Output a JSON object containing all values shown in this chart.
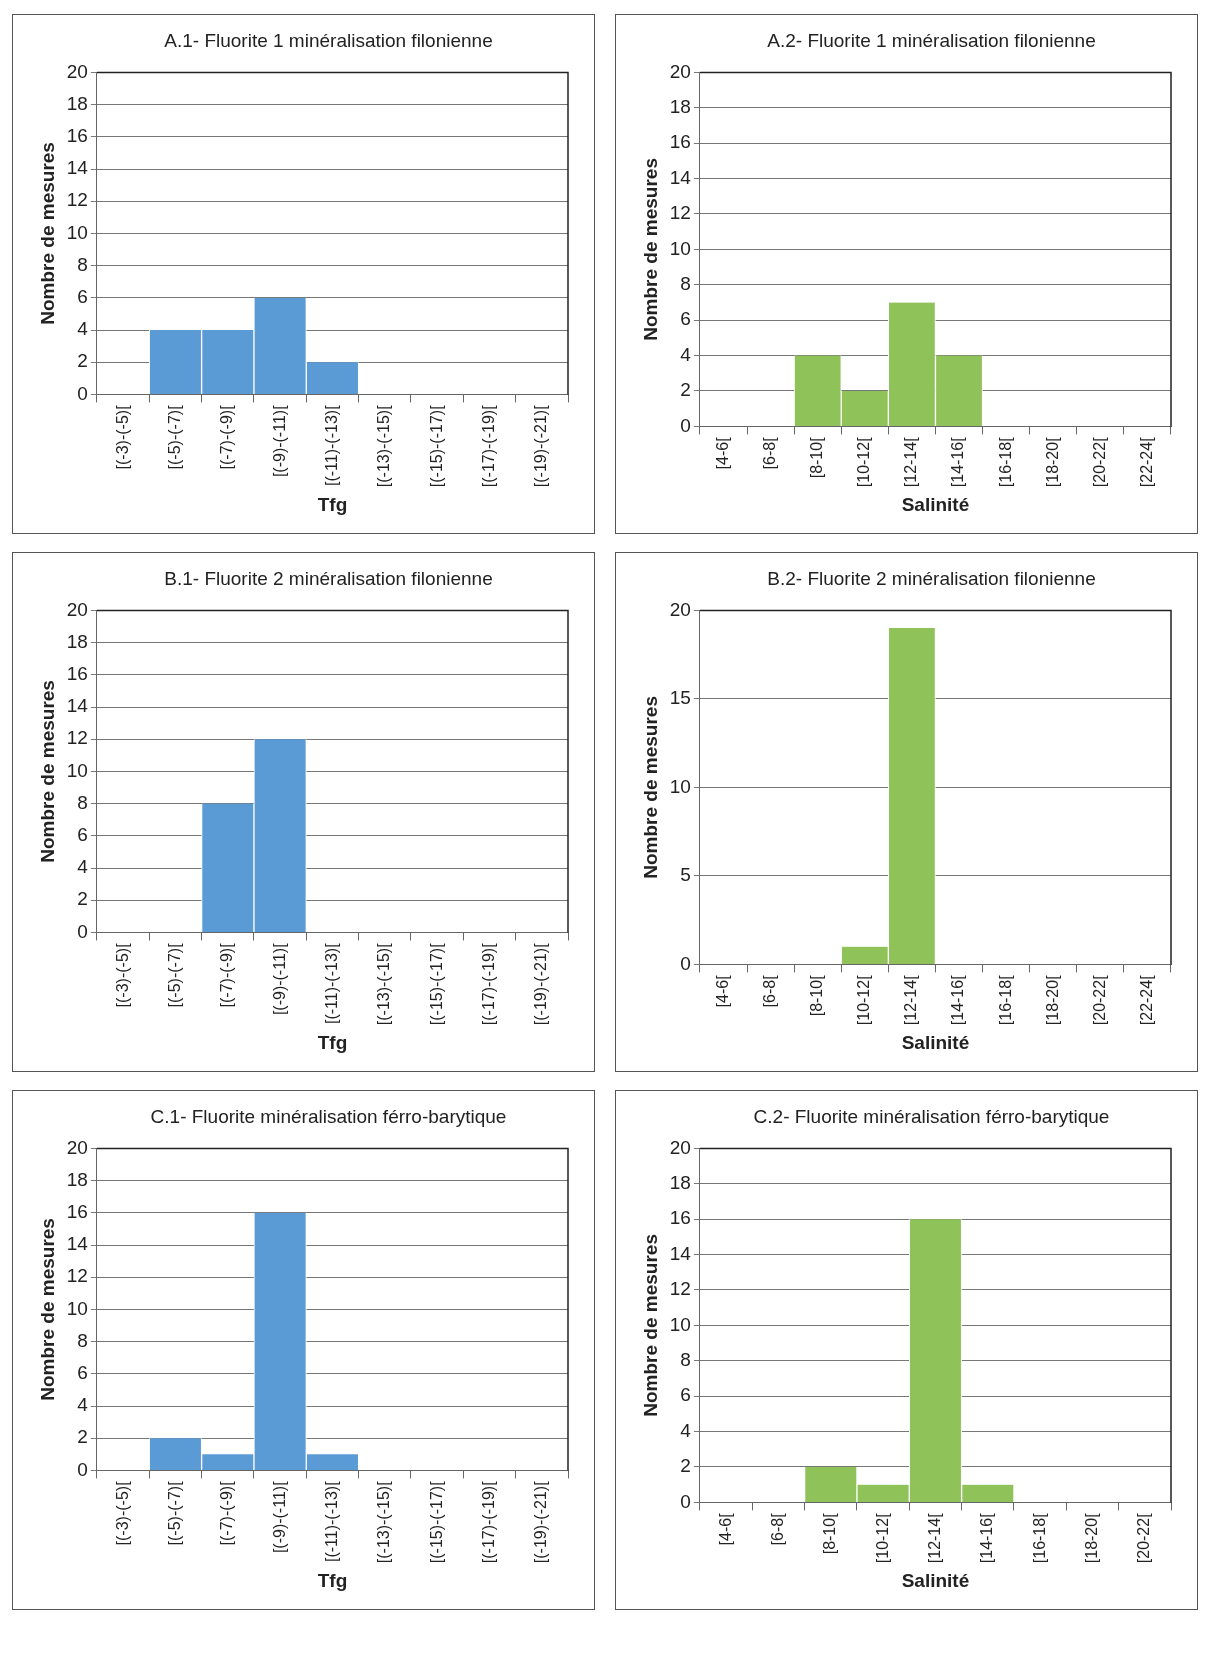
{
  "chart_data": [
    {
      "type": "bar",
      "title": "A.1- Fluorite 1 minéralisation filonienne",
      "xlabel": "Tfg",
      "ylabel": "Nombre de mesures",
      "categories": [
        "[(-3)-(-5)[",
        "[(-5)-(-7)[",
        "[(-7)-(-9)[",
        "[(-9)-(-11)[",
        "[(-11)-(-13)[",
        "[(-13)-(-15)[",
        "[(-15)-(-17)[",
        "[(-17)-(-19)[",
        "[(-19)-(-21)["
      ],
      "values": [
        0,
        4,
        4,
        6,
        2,
        0,
        0,
        0,
        0
      ],
      "color": "#5b9bd5",
      "ylim": [
        0,
        20
      ],
      "yticks": [
        0,
        2,
        4,
        6,
        8,
        10,
        12,
        14,
        16,
        18,
        20
      ],
      "grid": "y"
    },
    {
      "type": "bar",
      "title": "A.2- Fluorite 1 minéralisation  filonienne",
      "xlabel": "Salinité",
      "ylabel": "Nombre de mesures",
      "categories": [
        "[4-6[",
        "[6-8[",
        "[8-10[",
        "[10-12[",
        "[12-14[",
        "[14-16[",
        "[16-18[",
        "[18-20[",
        "[20-22[",
        "[22-24["
      ],
      "values": [
        0,
        0,
        4,
        2,
        7,
        4,
        0,
        0,
        0,
        0
      ],
      "color": "#8fc35a",
      "ylim": [
        0,
        20
      ],
      "yticks": [
        0,
        2,
        4,
        6,
        8,
        10,
        12,
        14,
        16,
        18,
        20
      ],
      "grid": "y"
    },
    {
      "type": "bar",
      "title": "B.1- Fluorite 2 minéralisation filonienne",
      "xlabel": "Tfg",
      "ylabel": "Nombre de mesures",
      "categories": [
        "[(-3)-(-5)[",
        "[(-5)-(-7)[",
        "[(-7)-(-9)[",
        "[(-9)-(-11)[",
        "[(-11)-(-13)[",
        "[(-13)-(-15)[",
        "[(-15)-(-17)[",
        "[(-17)-(-19)[",
        "[(-19)-(-21)["
      ],
      "values": [
        0,
        0,
        8,
        12,
        0,
        0,
        0,
        0,
        0
      ],
      "color": "#5b9bd5",
      "ylim": [
        0,
        20
      ],
      "yticks": [
        0,
        2,
        4,
        6,
        8,
        10,
        12,
        14,
        16,
        18,
        20
      ],
      "grid": "y"
    },
    {
      "type": "bar",
      "title": "B.2- Fluorite 2 minéralisation filonienne",
      "xlabel": "Salinité",
      "ylabel": "Nombre de mesures",
      "categories": [
        "[4-6[",
        "[6-8[",
        "[8-10[",
        "[10-12[",
        "[12-14[",
        "[14-16[",
        "[16-18[",
        "[18-20[",
        "[20-22[",
        "[22-24["
      ],
      "values": [
        0,
        0,
        0,
        1,
        19,
        0,
        0,
        0,
        0,
        0
      ],
      "color": "#8fc35a",
      "ylim": [
        0,
        20
      ],
      "yticks": [
        0,
        5,
        10,
        15,
        20
      ],
      "grid": "y"
    },
    {
      "type": "bar",
      "title": "C.1- Fluorite minéralisation férro-barytique",
      "xlabel": "Tfg",
      "ylabel": "Nombre de mesures",
      "categories": [
        "[(-3)-(-5)[",
        "[(-5)-(-7)[",
        "[(-7)-(-9)[",
        "[(-9)-(-11)[",
        "[(-11)-(-13)[",
        "[(-13)-(-15)[",
        "[(-15)-(-17)[",
        "[(-17)-(-19)[",
        "[(-19)-(-21)["
      ],
      "values": [
        0,
        2,
        1,
        16,
        1,
        0,
        0,
        0,
        0
      ],
      "color": "#5b9bd5",
      "ylim": [
        0,
        20
      ],
      "yticks": [
        0,
        2,
        4,
        6,
        8,
        10,
        12,
        14,
        16,
        18,
        20
      ],
      "grid": "y"
    },
    {
      "type": "bar",
      "title": "C.2- Fluorite minéralisation férro-barytique",
      "xlabel": "Salinité",
      "ylabel": "Nombre de mesures",
      "categories": [
        "[4-6[",
        "[6-8[",
        "[8-10[",
        "[10-12[",
        "[12-14[",
        "[14-16[",
        "[16-18[",
        "[18-20[",
        "[20-22["
      ],
      "values": [
        0,
        0,
        2,
        1,
        16,
        1,
        0,
        0,
        0
      ],
      "color": "#8fc35a",
      "ylim": [
        0,
        20
      ],
      "yticks": [
        0,
        2,
        4,
        6,
        8,
        10,
        12,
        14,
        16,
        18,
        20
      ],
      "grid": "y"
    }
  ]
}
